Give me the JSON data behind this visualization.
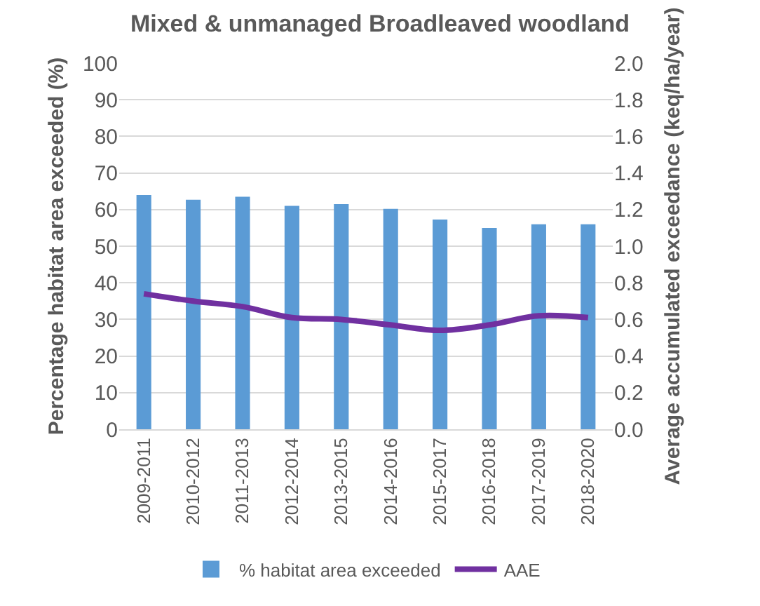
{
  "chart_data": {
    "type": "bar",
    "title": "Mixed & unmanaged Broadleaved woodland",
    "ylabel": "Percentage habitat area exceeded (%)",
    "y2label": "Average accumulated exceedance (keq/ha/year)",
    "categories": [
      "2009-2011",
      "2010-2012",
      "2011-2013",
      "2012-2014",
      "2013-2015",
      "2014-2016",
      "2015-2017",
      "2016-2018",
      "2017-2019",
      "2018-2020"
    ],
    "series": [
      {
        "name": "% habitat area exceeded",
        "color": "#5b9bd5",
        "values": [
          64,
          62.7,
          63.5,
          61,
          61.5,
          60.2,
          57.3,
          55,
          56,
          56
        ]
      },
      {
        "name": "AAE",
        "type": "line",
        "axis": "y2",
        "color": "#7030a0",
        "values": [
          0.74,
          0.7,
          0.67,
          0.61,
          0.6,
          0.57,
          0.54,
          0.57,
          0.62,
          0.61
        ]
      }
    ],
    "ylim": [
      0,
      100
    ],
    "yticks": [
      0,
      10,
      20,
      30,
      40,
      50,
      60,
      70,
      80,
      90,
      100
    ],
    "y2lim": [
      0,
      2
    ],
    "y2ticks": [
      {
        "value": 0,
        "label": "0.0"
      },
      {
        "value": 0.2,
        "label": "0.2"
      },
      {
        "value": 0.4,
        "label": "0.4"
      },
      {
        "value": 0.6,
        "label": "0.6"
      },
      {
        "value": 0.8,
        "label": "0.8"
      },
      {
        "value": 1,
        "label": "1.0"
      },
      {
        "value": 1.2,
        "label": "1.2"
      },
      {
        "value": 1.4,
        "label": "1.4"
      },
      {
        "value": 1.6,
        "label": "1.6"
      },
      {
        "value": 1.8,
        "label": "1.8"
      },
      {
        "value": 2,
        "label": "2.0"
      }
    ],
    "grid": "y",
    "legend": "bottom",
    "marker": "none",
    "line_style": "solid"
  }
}
